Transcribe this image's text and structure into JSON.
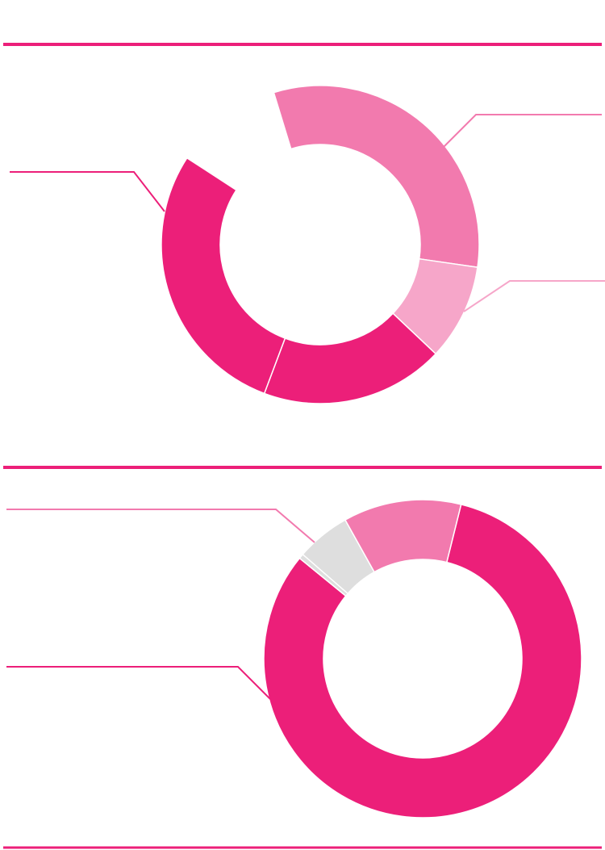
{
  "colors": {
    "rule": "#ec1f79",
    "magenta": "#ec1f79",
    "pink": "#f27aae",
    "light_pink": "#f6a6c9",
    "gray": "#dedede"
  },
  "chart_data": [
    {
      "type": "pie",
      "style": "donut",
      "slices": [
        {
          "value": 36,
          "color_key": "pink"
        },
        {
          "value": 11,
          "color_key": "light_pink"
        },
        {
          "value": 21,
          "color_key": "magenta"
        },
        {
          "value": 32,
          "color_key": "magenta"
        }
      ],
      "gap_degrees": 40
    },
    {
      "type": "pie",
      "style": "donut",
      "slices": [
        {
          "value": 82,
          "color_key": "magenta"
        },
        {
          "value": 0.5,
          "color_key": "gray"
        },
        {
          "value": 5.5,
          "color_key": "gray"
        },
        {
          "value": 12,
          "color_key": "pink"
        }
      ],
      "gap_degrees": 0
    }
  ]
}
